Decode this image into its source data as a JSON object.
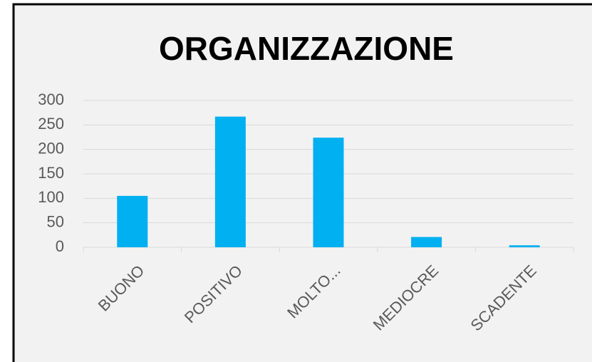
{
  "chart_data": {
    "type": "bar",
    "title": "ORGANIZZAZIONE",
    "categories": [
      "BUONO",
      "POSITIVO",
      "MOLTO...",
      "MEDIOCRE",
      "SCADENTE"
    ],
    "values": [
      105,
      267,
      224,
      21,
      4
    ],
    "color": "#00b0f0",
    "ylim": [
      0,
      300
    ],
    "yticks": [
      0,
      50,
      100,
      150,
      200,
      250,
      300
    ],
    "grid": true
  }
}
